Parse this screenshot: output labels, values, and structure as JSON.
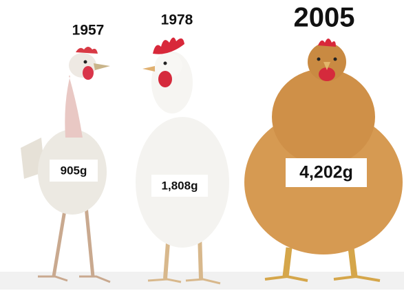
{
  "items": [
    {
      "year": "1957",
      "weight": "905g"
    },
    {
      "year": "1978",
      "weight": "1,808g"
    },
    {
      "year": "2005",
      "weight": "4,202g"
    }
  ]
}
